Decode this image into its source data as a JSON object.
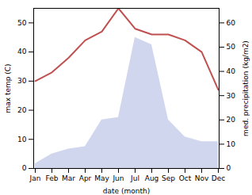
{
  "chart_data": {
    "type": "line",
    "xlabel": "date (month)",
    "ylabel": "max temp (C)",
    "y2label": "med. precipitation (kg/m2)",
    "categories": [
      "Jan",
      "Feb",
      "Mar",
      "Apr",
      "May",
      "Jun",
      "Jul",
      "Aug",
      "Sep",
      "Oct",
      "Nov",
      "Dec"
    ],
    "series": [
      {
        "type": "area",
        "axis": "y2",
        "color": "#aab4e0",
        "values": [
          2,
          6,
          8,
          9,
          20,
          21,
          54,
          51,
          20,
          13,
          11,
          11
        ]
      },
      {
        "type": "line",
        "color": "#c05050",
        "values": [
          30,
          33,
          38,
          44,
          47,
          55,
          48,
          46,
          46,
          44,
          40,
          27
        ]
      }
    ],
    "ylim": [
      0,
      55
    ],
    "yticks": [
      0,
      10,
      20,
      30,
      40,
      50
    ],
    "y2lim": [
      0,
      66
    ],
    "y2ticks": [
      0,
      10,
      20,
      30,
      40,
      50,
      60
    ]
  }
}
